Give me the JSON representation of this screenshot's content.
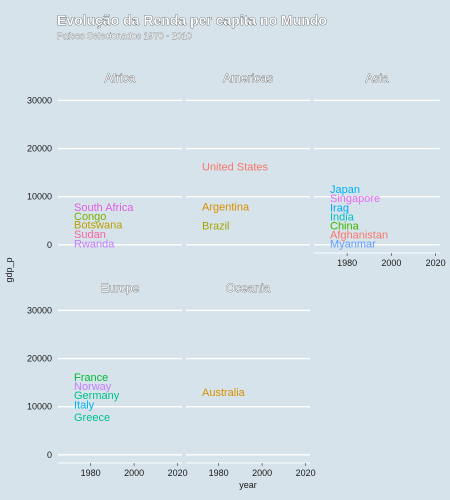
{
  "chart_data": {
    "type": "scatter",
    "title": "Evolução da Renda per capita no Mundo",
    "subtitle": "Países Selecionados 1970 - 2010",
    "xlabel": "year",
    "ylabel": "gdp_p",
    "xlim": [
      1965,
      2022
    ],
    "ylim": [
      -1500,
      33000
    ],
    "yticks": [
      0,
      10000,
      20000,
      30000
    ],
    "xticks": [
      1980,
      2000,
      2020
    ],
    "grid": true,
    "facets": [
      {
        "name": "Africa",
        "labels": [
          {
            "text": "South Africa",
            "y": 7900,
            "color": "#e05de0"
          },
          {
            "text": "Congo",
            "y": 6000,
            "color": "#7cae00"
          },
          {
            "text": "Botswana",
            "y": 4200,
            "color": "#b8a000"
          },
          {
            "text": "Sudan",
            "y": 2200,
            "color": "#f763a0"
          },
          {
            "text": "Rwanda",
            "y": 300,
            "color": "#c77cff"
          }
        ]
      },
      {
        "name": "Americas",
        "labels": [
          {
            "text": "United States",
            "y": 16300,
            "color": "#f8766d"
          },
          {
            "text": "Argentina",
            "y": 8000,
            "color": "#d89000"
          },
          {
            "text": "Brazil",
            "y": 4000,
            "color": "#a3a500"
          }
        ]
      },
      {
        "name": "Asia",
        "labels": [
          {
            "text": "Japan",
            "y": 11600,
            "color": "#00b0f6"
          },
          {
            "text": "Singapore",
            "y": 9700,
            "color": "#e76bf3"
          },
          {
            "text": "Iraq",
            "y": 7800,
            "color": "#00a9ff"
          },
          {
            "text": "India",
            "y": 5900,
            "color": "#00bfc4"
          },
          {
            "text": "China",
            "y": 4000,
            "color": "#39b600"
          },
          {
            "text": "Afghanistan",
            "y": 2100,
            "color": "#f8766d"
          },
          {
            "text": "Myanmar",
            "y": 300,
            "color": "#619cff"
          }
        ]
      },
      {
        "name": "Europe",
        "labels": [
          {
            "text": "France",
            "y": 16200,
            "color": "#00ba38"
          },
          {
            "text": "Norway",
            "y": 14300,
            "color": "#c77cff"
          },
          {
            "text": "Germany",
            "y": 12400,
            "color": "#00c08b"
          },
          {
            "text": "Italy",
            "y": 10500,
            "color": "#00b4ef"
          },
          {
            "text": "Greece",
            "y": 7900,
            "color": "#00c094"
          }
        ]
      },
      {
        "name": "Oceania",
        "labels": [
          {
            "text": "Australia",
            "y": 13000,
            "color": "#d89000"
          }
        ]
      }
    ]
  }
}
